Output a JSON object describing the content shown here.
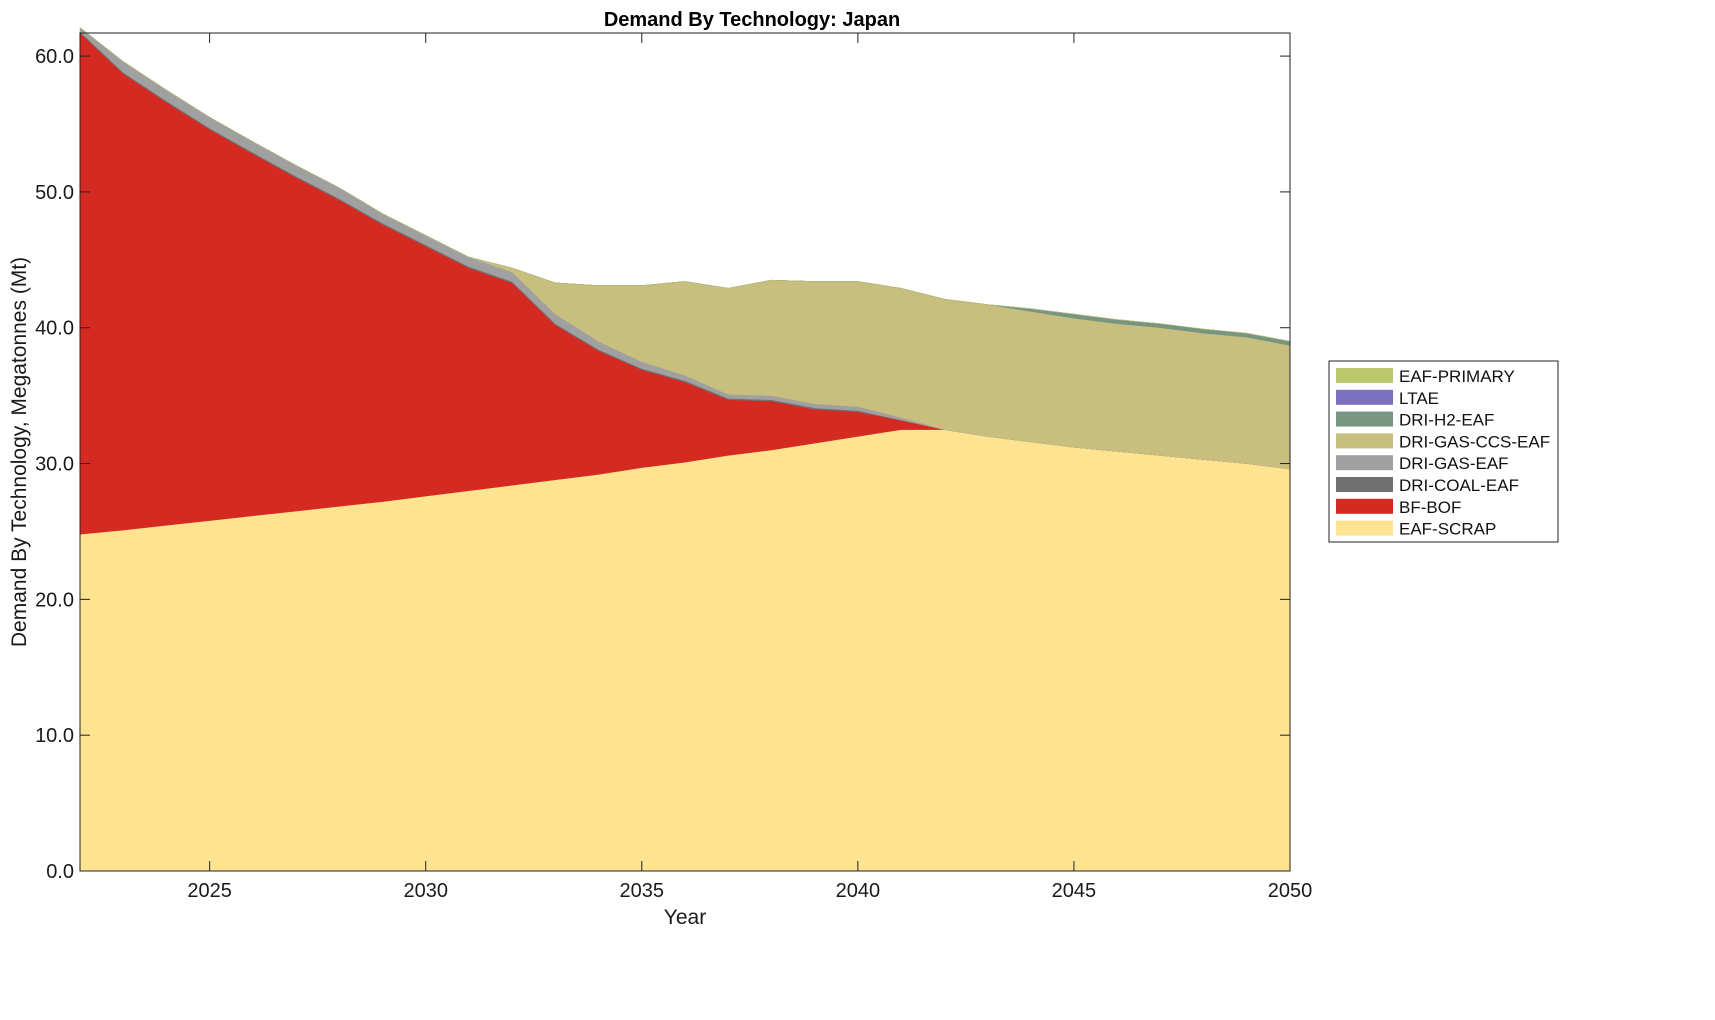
{
  "chart_data": {
    "type": "area",
    "stacked": true,
    "title": "Demand By Technology: Japan",
    "xlabel": "Year",
    "ylabel": "Demand By Technology, Megatonnes (Mt)",
    "xlim": [
      2022,
      2050
    ],
    "ylim": [
      0,
      61.7
    ],
    "xticks": [
      2025,
      2030,
      2035,
      2040,
      2045,
      2050
    ],
    "yticks": [
      0,
      10,
      20,
      30,
      40,
      50,
      60
    ],
    "ytick_format": "one-decimal",
    "grid": false,
    "legend_position": "right",
    "x": [
      2022,
      2023,
      2024,
      2025,
      2026,
      2027,
      2028,
      2029,
      2030,
      2031,
      2032,
      2033,
      2034,
      2035,
      2036,
      2037,
      2038,
      2039,
      2040,
      2041,
      2042,
      2043,
      2044,
      2045,
      2046,
      2047,
      2048,
      2049,
      2050
    ],
    "series": [
      {
        "name": "EAF-SCRAP",
        "color": "#fee391",
        "values": [
          24.8,
          25.1,
          25.45,
          25.8,
          26.15,
          26.5,
          26.85,
          27.2,
          27.6,
          28.0,
          28.4,
          28.8,
          29.2,
          29.7,
          30.1,
          30.6,
          31.0,
          31.5,
          32.0,
          32.5,
          32.5,
          32.0,
          31.6,
          31.2,
          30.9,
          30.6,
          30.3,
          30.0,
          29.6
        ]
      },
      {
        "name": "BF-BOF",
        "color": "#d42a22",
        "values": [
          36.9,
          33.6,
          31.15,
          28.8,
          26.65,
          24.55,
          22.55,
          20.4,
          18.4,
          16.4,
          14.9,
          11.4,
          9.1,
          7.2,
          5.9,
          4.1,
          3.6,
          2.5,
          1.8,
          0.7,
          0.0,
          0.0,
          0.0,
          0.0,
          0.0,
          0.0,
          0.0,
          0.0,
          0.0
        ]
      },
      {
        "name": "DRI-COAL-EAF",
        "color": "#707070",
        "values": [
          0.1,
          0.1,
          0.1,
          0.1,
          0.1,
          0.1,
          0.1,
          0.1,
          0.1,
          0.1,
          0.1,
          0.1,
          0.1,
          0.1,
          0.1,
          0.1,
          0.1,
          0.1,
          0.1,
          0.0,
          0.0,
          0.0,
          0.0,
          0.0,
          0.0,
          0.0,
          0.0,
          0.0,
          0.0
        ]
      },
      {
        "name": "DRI-GAS-EAF",
        "color": "#a0a0a0",
        "values": [
          0.3,
          0.8,
          0.8,
          0.8,
          0.8,
          0.8,
          0.8,
          0.7,
          0.7,
          0.7,
          0.7,
          0.7,
          0.6,
          0.5,
          0.4,
          0.3,
          0.3,
          0.3,
          0.3,
          0.2,
          0.0,
          0.0,
          0.0,
          0.0,
          0.0,
          0.0,
          0.0,
          0.0,
          0.0
        ]
      },
      {
        "name": "DRI-GAS-CCS-EAF",
        "color": "#c8be7e",
        "values": [
          0.0,
          0.0,
          0.0,
          0.0,
          0.0,
          0.0,
          0.0,
          0.0,
          0.0,
          0.0,
          0.3,
          2.3,
          4.1,
          5.6,
          6.9,
          7.8,
          8.5,
          9.0,
          9.2,
          9.5,
          9.6,
          9.7,
          9.6,
          9.5,
          9.4,
          9.4,
          9.3,
          9.3,
          9.1
        ]
      },
      {
        "name": "DRI-H2-EAF",
        "color": "#769681",
        "values": [
          0.0,
          0.0,
          0.0,
          0.0,
          0.0,
          0.0,
          0.0,
          0.0,
          0.0,
          0.0,
          0.0,
          0.0,
          0.0,
          0.0,
          0.0,
          0.0,
          0.0,
          0.0,
          0.0,
          0.0,
          0.0,
          0.0,
          0.2,
          0.3,
          0.3,
          0.3,
          0.3,
          0.3,
          0.3
        ]
      },
      {
        "name": "LTAE",
        "color": "#7b6fbf",
        "values": [
          0,
          0,
          0,
          0,
          0,
          0,
          0,
          0,
          0,
          0,
          0,
          0,
          0,
          0,
          0,
          0,
          0,
          0,
          0,
          0,
          0,
          0,
          0,
          0,
          0,
          0,
          0,
          0,
          0
        ]
      },
      {
        "name": "EAF-PRIMARY",
        "color": "#bcc86e",
        "values": [
          0,
          0,
          0,
          0,
          0,
          0,
          0,
          0,
          0,
          0,
          0,
          0,
          0,
          0,
          0,
          0,
          0,
          0,
          0,
          0,
          0,
          0,
          0,
          0,
          0,
          0,
          0,
          0,
          0
        ]
      }
    ],
    "legend_order": [
      "EAF-PRIMARY",
      "LTAE",
      "DRI-H2-EAF",
      "DRI-GAS-CCS-EAF",
      "DRI-GAS-EAF",
      "DRI-COAL-EAF",
      "BF-BOF",
      "EAF-SCRAP"
    ]
  }
}
